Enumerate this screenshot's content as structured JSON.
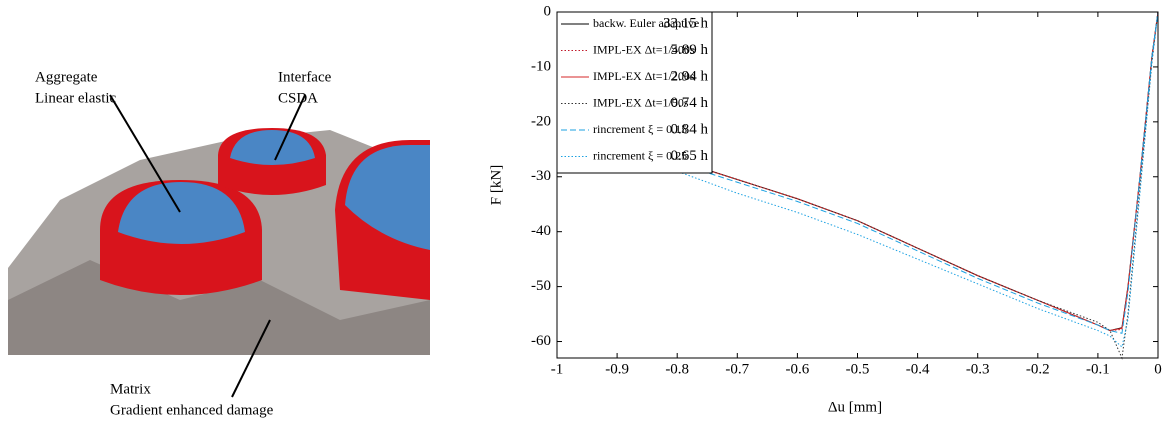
{
  "illustration": {
    "labels": [
      "Aggregate",
      "Linear elastic",
      "Interface",
      "CSDA",
      "Matrix",
      "Gradient enhanced damage"
    ]
  },
  "chart_data": {
    "type": "line",
    "xlabel": "Δu [mm]",
    "ylabel": "F [kN]",
    "xlim": [
      -1,
      0
    ],
    "ylim": [
      -63,
      0
    ],
    "xticks": [
      -1,
      -0.9,
      -0.8,
      -0.7,
      -0.6,
      -0.5,
      -0.4,
      -0.3,
      -0.2,
      -0.1,
      0
    ],
    "yticks": [
      0,
      -10,
      -20,
      -30,
      -40,
      -50,
      -60
    ],
    "x": [
      -1,
      -0.9,
      -0.8,
      -0.7,
      -0.6,
      -0.5,
      -0.4,
      -0.3,
      -0.2,
      -0.1,
      -0.08,
      -0.06,
      -0.05,
      -0.03,
      -0.01,
      0
    ],
    "legend": "upper left",
    "series": [
      {
        "name": "backw. Euler adaptive",
        "time": "33.15 h",
        "color": "#000000",
        "dash": "solid",
        "values": [
          -19,
          -23,
          -27,
          -30.5,
          -34,
          -38,
          -43,
          -48,
          -52.5,
          -57,
          -58,
          -57.5,
          -50,
          -30,
          -8,
          0
        ]
      },
      {
        "name": "IMPL-EX Δt=1/400s",
        "time": "5.89 h",
        "color": "#c0182a",
        "dash": "dotted",
        "values": [
          -19,
          -23,
          -27,
          -30.5,
          -34,
          -38,
          -43,
          -48,
          -52.5,
          -57,
          -58,
          -57.8,
          -50.5,
          -30,
          -8,
          0
        ]
      },
      {
        "name": "IMPL-EX Δt=1/200s",
        "time": "2.94 h",
        "color": "#d62728",
        "dash": "solid",
        "values": [
          -19,
          -23,
          -27,
          -30.5,
          -34,
          -38,
          -43,
          -48,
          -52.5,
          -57,
          -58,
          -57.6,
          -50.2,
          -30,
          -8,
          0
        ]
      },
      {
        "name": "IMPL-EX Δt=1/50s",
        "time": "0.74 h",
        "color": "#333333",
        "dash": "dotted",
        "values": [
          -19,
          -23,
          -27,
          -30.5,
          -34,
          -38,
          -43,
          -48,
          -52.5,
          -56.5,
          -58,
          -63,
          -55,
          -32,
          -9,
          0
        ]
      },
      {
        "name": "rincrement ξ = 0.15",
        "time": "0.84 h",
        "color": "#1ba1e2",
        "dash": "dashed",
        "values": [
          -19.5,
          -23.5,
          -27.5,
          -31,
          -34.5,
          -38.5,
          -43.5,
          -48.5,
          -53,
          -57,
          -58,
          -58.5,
          -51,
          -30,
          -8,
          0
        ]
      },
      {
        "name": "rincrement ξ = 0.25",
        "time": "0.65 h",
        "color": "#1ba1e2",
        "dash": "dotted",
        "values": [
          -21,
          -25,
          -29,
          -33,
          -36.5,
          -40.5,
          -45,
          -49.5,
          -54,
          -58,
          -59,
          -61,
          -56,
          -33,
          -9,
          0
        ]
      }
    ]
  }
}
